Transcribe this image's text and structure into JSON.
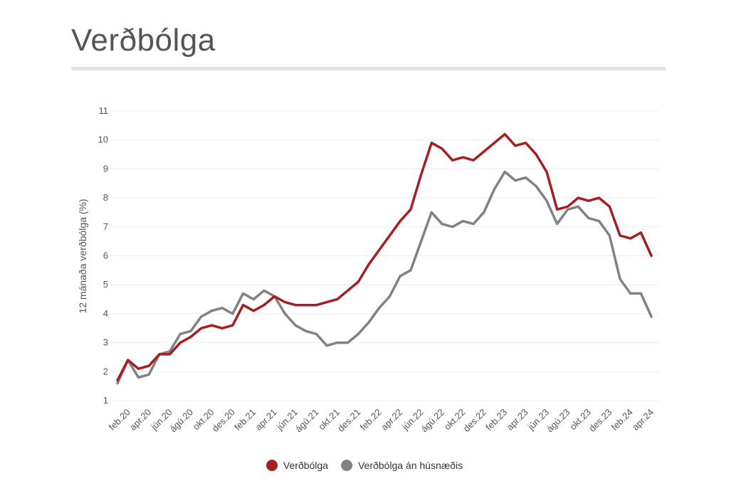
{
  "title": "Verðbólga",
  "chart_data": {
    "type": "line",
    "ylabel": "12 mánaða verðbólga (%)",
    "ylim": [
      1,
      11
    ],
    "yticks": [
      1,
      2,
      3,
      4,
      5,
      6,
      7,
      8,
      9,
      10,
      11
    ],
    "grid": true,
    "legend_position": "bottom-center",
    "x": [
      "jan.20",
      "feb.20",
      "mar.20",
      "apr.20",
      "maí.20",
      "jún.20",
      "júl.20",
      "ágú.20",
      "sep.20",
      "okt.20",
      "nóv.20",
      "des.20",
      "jan.21",
      "feb.21",
      "mar.21",
      "apr.21",
      "maí.21",
      "jún.21",
      "júl.21",
      "ágú.21",
      "sep.21",
      "okt.21",
      "nóv.21",
      "des.21",
      "jan.22",
      "feb.22",
      "mar.22",
      "apr.22",
      "maí.22",
      "jún.22",
      "júl.22",
      "ágú.22",
      "sep.22",
      "okt.22",
      "nóv.22",
      "des.22",
      "jan.23",
      "feb.23",
      "mar.23",
      "apr.23",
      "maí.23",
      "jún.23",
      "júl.23",
      "ágú.23",
      "sep.23",
      "okt.23",
      "nóv.23",
      "des.23",
      "jan.24",
      "feb.24",
      "mar.24",
      "apr.24"
    ],
    "xticks": [
      "feb.20",
      "apr.20",
      "jún.20",
      "ágú.20",
      "okt.20",
      "des.20",
      "feb.21",
      "apr.21",
      "jún.21",
      "ágú.21",
      "okt.21",
      "des.21",
      "feb.22",
      "apr.22",
      "jún.22",
      "ágú.22",
      "okt.22",
      "des.22",
      "feb.23",
      "apr.23",
      "jún.23",
      "ágú.23",
      "okt.23",
      "des.23",
      "feb.24",
      "apr.24"
    ],
    "series": [
      {
        "name": "Verðbólga",
        "color": "#a51e22",
        "values": [
          1.7,
          2.4,
          2.1,
          2.2,
          2.6,
          2.6,
          3.0,
          3.2,
          3.5,
          3.6,
          3.5,
          3.6,
          4.3,
          4.1,
          4.3,
          4.6,
          4.4,
          4.3,
          4.3,
          4.3,
          4.4,
          4.5,
          4.8,
          5.1,
          5.7,
          6.2,
          6.7,
          7.2,
          7.6,
          8.8,
          9.9,
          9.7,
          9.3,
          9.4,
          9.3,
          9.6,
          9.9,
          10.2,
          9.8,
          9.9,
          9.5,
          8.9,
          7.6,
          7.7,
          8.0,
          7.9,
          8.0,
          7.7,
          6.7,
          6.6,
          6.8,
          6.0
        ]
      },
      {
        "name": "Verðbólga án húsnæðis",
        "color": "#828282",
        "values": [
          1.6,
          2.4,
          1.8,
          1.9,
          2.6,
          2.7,
          3.3,
          3.4,
          3.9,
          4.1,
          4.2,
          4.0,
          4.7,
          4.5,
          4.8,
          4.6,
          4.0,
          3.6,
          3.4,
          3.3,
          2.9,
          3.0,
          3.0,
          3.3,
          3.7,
          4.2,
          4.6,
          5.3,
          5.5,
          6.5,
          7.5,
          7.1,
          7.0,
          7.2,
          7.1,
          7.5,
          8.3,
          8.9,
          8.6,
          8.7,
          8.4,
          7.9,
          7.1,
          7.6,
          7.7,
          7.3,
          7.2,
          6.7,
          5.2,
          4.7,
          4.7,
          3.9
        ]
      }
    ]
  }
}
